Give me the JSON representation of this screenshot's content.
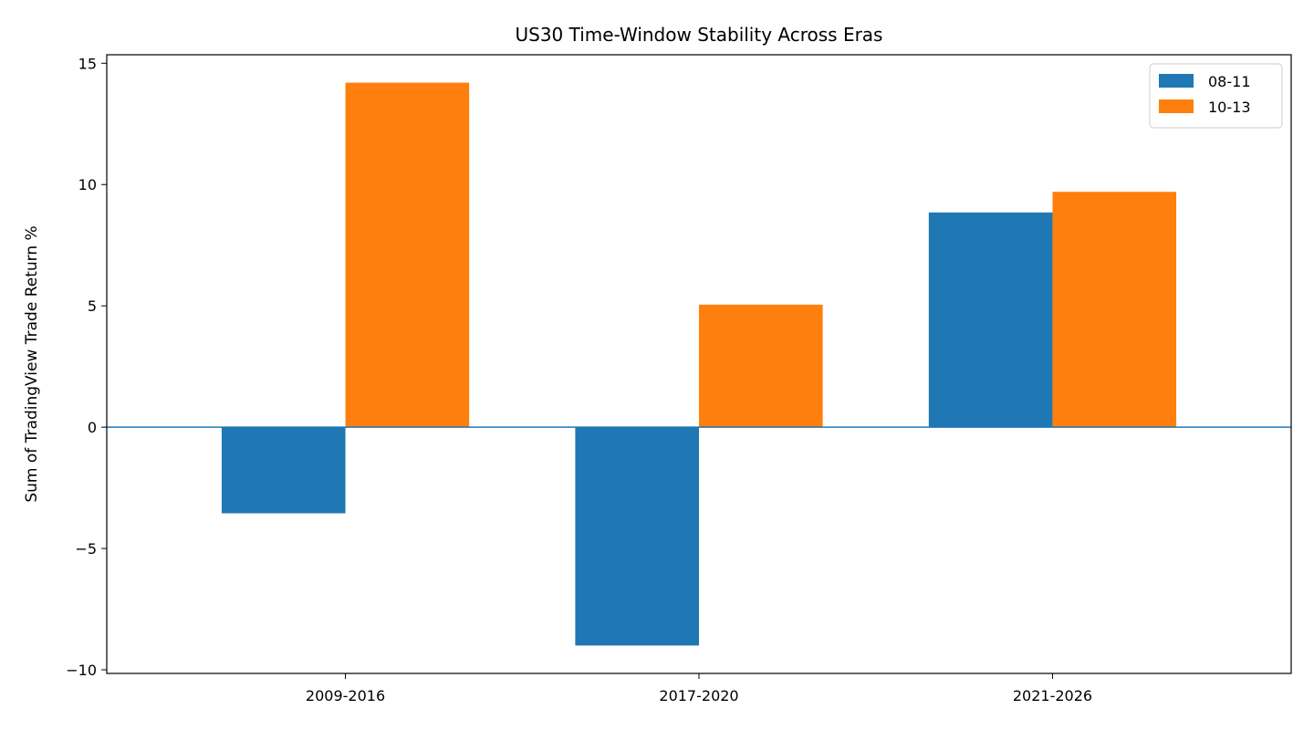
{
  "chart_data": {
    "type": "bar",
    "title": "US30 Time-Window Stability Across Eras",
    "xlabel": "",
    "ylabel": "Sum of TradingView Trade Return %",
    "categories": [
      "2009-2016",
      "2017-2020",
      "2021-2026"
    ],
    "series": [
      {
        "name": "08-11",
        "color": "#1f77b4",
        "values": [
          -3.55,
          -9.0,
          8.85
        ]
      },
      {
        "name": "10-13",
        "color": "#ff7f0e",
        "values": [
          14.2,
          5.05,
          9.7
        ]
      }
    ],
    "ylim": [
      -10.15,
      15.35
    ],
    "yticks": [
      -10,
      -5,
      0,
      5,
      10,
      15
    ],
    "ytick_labels": [
      "−10",
      "−5",
      "0",
      "5",
      "10",
      "15"
    ],
    "zero_line_color": "#1f77b4",
    "grid": false,
    "legend_position": "top-right"
  }
}
